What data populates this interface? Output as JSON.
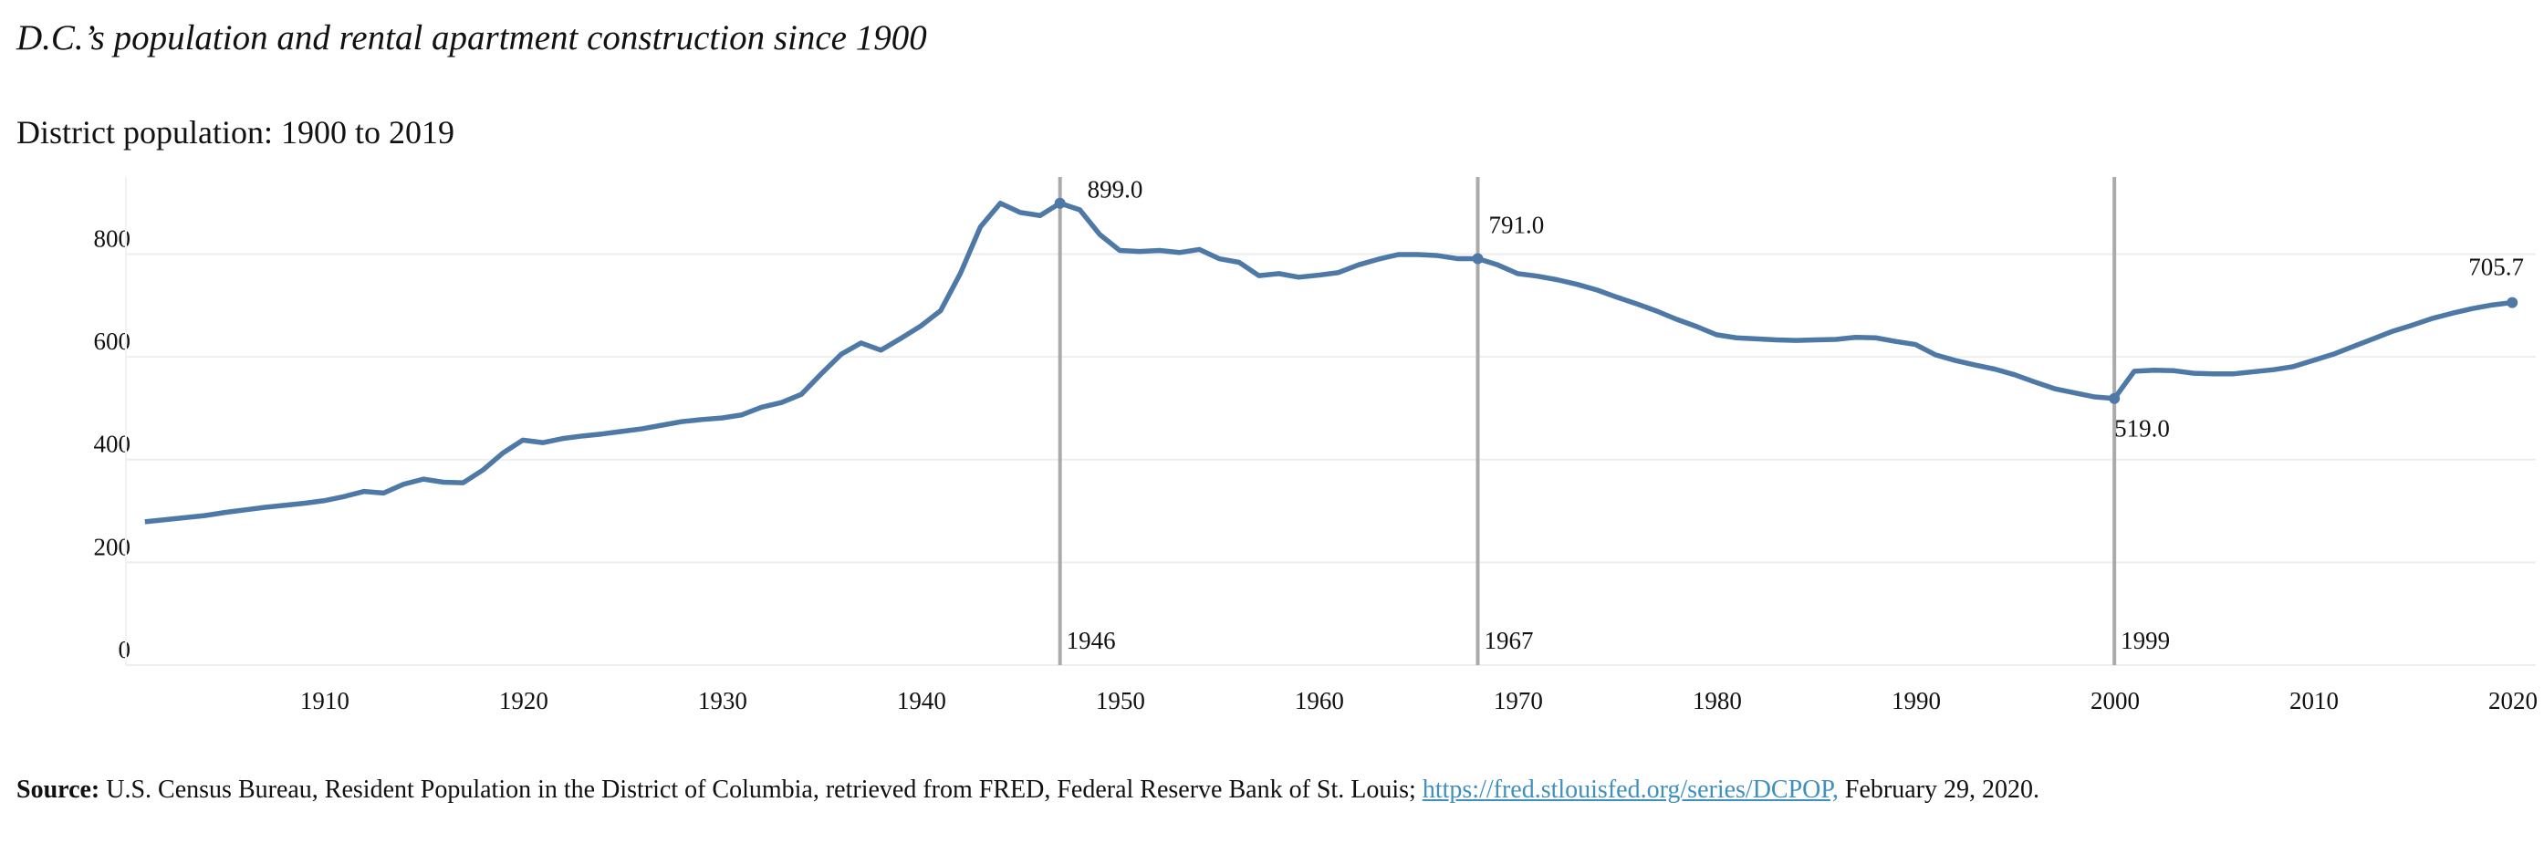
{
  "chart_data": {
    "type": "line",
    "title": "D.C.’s population and rental apartment construction since 1900",
    "subtitle": "District population: 1900 to 2019",
    "x": [
      1900,
      1901,
      1902,
      1903,
      1904,
      1905,
      1906,
      1907,
      1908,
      1909,
      1910,
      1911,
      1912,
      1913,
      1914,
      1915,
      1916,
      1917,
      1918,
      1919,
      1920,
      1921,
      1922,
      1923,
      1924,
      1925,
      1926,
      1927,
      1928,
      1929,
      1930,
      1931,
      1932,
      1933,
      1934,
      1935,
      1936,
      1937,
      1938,
      1939,
      1940,
      1941,
      1942,
      1943,
      1944,
      1945,
      1946,
      1947,
      1948,
      1949,
      1950,
      1951,
      1952,
      1953,
      1954,
      1955,
      1956,
      1957,
      1958,
      1959,
      1960,
      1961,
      1962,
      1963,
      1964,
      1965,
      1966,
      1967,
      1968,
      1969,
      1970,
      1971,
      1972,
      1973,
      1974,
      1975,
      1976,
      1977,
      1978,
      1979,
      1980,
      1981,
      1982,
      1983,
      1984,
      1985,
      1986,
      1987,
      1988,
      1989,
      1990,
      1991,
      1992,
      1993,
      1994,
      1995,
      1996,
      1997,
      1998,
      1999,
      2000,
      2001,
      2002,
      2003,
      2004,
      2005,
      2006,
      2007,
      2008,
      2009,
      2010,
      2011,
      2012,
      2013,
      2014,
      2015,
      2016,
      2017,
      2018,
      2019
    ],
    "series": [
      {
        "name": "District population",
        "color": "#4e79a7",
        "values": [
          279,
          283,
          287,
          291,
          297,
          302,
          307,
          311,
          315,
          320,
          328,
          338,
          335,
          352,
          362,
          356,
          355,
          380,
          413,
          438,
          433,
          441,
          446,
          450,
          455,
          460,
          467,
          474,
          478,
          481,
          487,
          502,
          511,
          527,
          567,
          605,
          627,
          613,
          636,
          660,
          690,
          763,
          853,
          899,
          881,
          875,
          899,
          886,
          838,
          807,
          805,
          807,
          803,
          809,
          791,
          784,
          758,
          762,
          755,
          759,
          764,
          779,
          790,
          799,
          799,
          797,
          791,
          791,
          779,
          762,
          757,
          750,
          741,
          730,
          716,
          703,
          689,
          673,
          659,
          643,
          637,
          635,
          633,
          632,
          633,
          634,
          638,
          637,
          630,
          624,
          604,
          593,
          584,
          576,
          565,
          551,
          538,
          530,
          522,
          519,
          572,
          574,
          573,
          568,
          567,
          567,
          571,
          575,
          581,
          593,
          605,
          620,
          635,
          650,
          662,
          675,
          685,
          694,
          701,
          705.7
        ]
      }
    ],
    "annotations": [
      {
        "x": 1946,
        "label": "899.0"
      },
      {
        "x": 1967,
        "label": "791.0"
      },
      {
        "x": 1999,
        "label": "519.0"
      },
      {
        "x": 2019,
        "label": "705.7"
      }
    ],
    "vlines": [
      1946,
      1967,
      1999
    ],
    "xlim": [
      1899,
      2020
    ],
    "xticks": [
      1910,
      1920,
      1930,
      1940,
      1950,
      1960,
      1970,
      1980,
      1990,
      2000,
      2010,
      2020
    ],
    "ylim": [
      0,
      950
    ],
    "yticks": [
      0,
      200,
      400,
      600,
      800
    ],
    "grid": true,
    "source": {
      "prefix": "Source:",
      "text": "U.S. Census Bureau, Resident Population in the District of Columbia, retrieved from FRED, Federal Reserve Bank of St. Louis;",
      "link": "https://fred.stlouisfed.org/series/DCPOP,",
      "suffix": "February 29, 2020."
    }
  }
}
